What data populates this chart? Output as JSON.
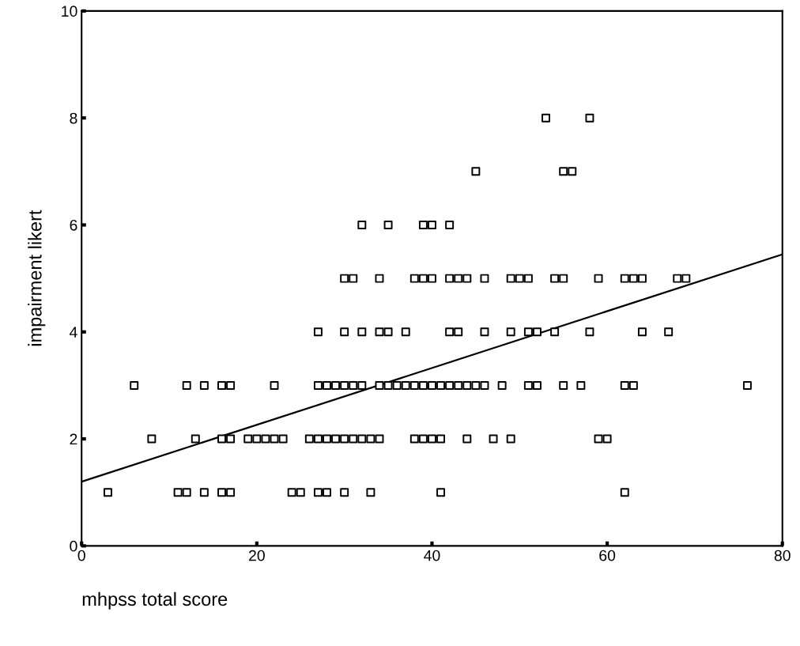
{
  "chart_data": {
    "type": "scatter",
    "xlabel": "mhpss total score",
    "ylabel": "impairment likert",
    "xlim": [
      0,
      80
    ],
    "ylim": [
      0,
      10
    ],
    "xticks": [
      0,
      20,
      40,
      60,
      80
    ],
    "yticks": [
      0,
      2,
      4,
      6,
      8,
      10
    ],
    "grid": false,
    "marker": "square",
    "series": [
      {
        "color": "#000000",
        "x": [
          53,
          58,
          45,
          55,
          56,
          32,
          35,
          39,
          40,
          42,
          30,
          31,
          34,
          38,
          39,
          40,
          42,
          43,
          44,
          46,
          49,
          50,
          51,
          54,
          55,
          59,
          62,
          63,
          64,
          68,
          69,
          27,
          30,
          32,
          34,
          35,
          37,
          42,
          43,
          46,
          49,
          51,
          52,
          54,
          58,
          64,
          67,
          6,
          12,
          14,
          16,
          17,
          22,
          27,
          28,
          29,
          30,
          31,
          32,
          34,
          35,
          36,
          37,
          38,
          39,
          40,
          41,
          42,
          43,
          44,
          45,
          46,
          48,
          51,
          52,
          55,
          57,
          62,
          63,
          76,
          8,
          13,
          16,
          17,
          19,
          20,
          21,
          22,
          23,
          26,
          27,
          28,
          29,
          30,
          31,
          32,
          33,
          34,
          38,
          39,
          40,
          41,
          44,
          47,
          49,
          59,
          60,
          3,
          11,
          12,
          14,
          16,
          17,
          24,
          25,
          27,
          28,
          30,
          33,
          41,
          62
        ],
        "values": [
          8,
          8,
          7,
          7,
          7,
          6,
          6,
          6,
          6,
          6,
          5,
          5,
          5,
          5,
          5,
          5,
          5,
          5,
          5,
          5,
          5,
          5,
          5,
          5,
          5,
          5,
          5,
          5,
          5,
          5,
          5,
          4,
          4,
          4,
          4,
          4,
          4,
          4,
          4,
          4,
          4,
          4,
          4,
          4,
          4,
          4,
          4,
          3,
          3,
          3,
          3,
          3,
          3,
          3,
          3,
          3,
          3,
          3,
          3,
          3,
          3,
          3,
          3,
          3,
          3,
          3,
          3,
          3,
          3,
          3,
          3,
          3,
          3,
          3,
          3,
          3,
          3,
          3,
          3,
          3,
          2,
          2,
          2,
          2,
          2,
          2,
          2,
          2,
          2,
          2,
          2,
          2,
          2,
          2,
          2,
          2,
          2,
          2,
          2,
          2,
          2,
          2,
          2,
          2,
          2,
          2,
          2,
          1,
          1,
          1,
          1,
          1,
          1,
          1,
          1,
          1,
          1,
          1,
          1,
          1,
          1
        ]
      },
      {
        "type": "line",
        "color": "#000000",
        "marker": "none",
        "line_style": "solid",
        "x": [
          0,
          80
        ],
        "values": [
          1.2,
          5.45
        ]
      }
    ]
  }
}
